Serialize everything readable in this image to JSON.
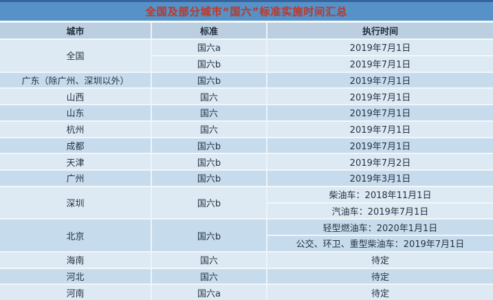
{
  "title": "全国及部分城市“国六”标准实施时间汇总",
  "colors": {
    "title_bar": "#5692c8",
    "title_text": "#c13a2c",
    "title_top_border": "#35649d",
    "header_row": "#bccfe0",
    "row_light": "#dde9f3",
    "row_dark": "#c6dbec",
    "grid_line": "#f2f7fa",
    "body_text": "#243243"
  },
  "table": {
    "headers": {
      "city": "城市",
      "standard": "标准",
      "time": "执行时间"
    },
    "rows": [
      {
        "city": "全国",
        "entries": [
          {
            "standard": "国六a",
            "time": "2019年7月1日"
          },
          {
            "standard": "国六b",
            "time": "2019年7月1日"
          }
        ]
      },
      {
        "city": "广东（除广州、深圳以外）",
        "entries": [
          {
            "standard": "国六b",
            "time": "2019年7月1日"
          }
        ]
      },
      {
        "city": "山西",
        "entries": [
          {
            "standard": "国六",
            "time": "2019年7月1日"
          }
        ]
      },
      {
        "city": "山东",
        "entries": [
          {
            "standard": "国六",
            "time": "2019年7月1日"
          }
        ]
      },
      {
        "city": "杭州",
        "entries": [
          {
            "standard": "国六",
            "time": "2019年7月1日"
          }
        ]
      },
      {
        "city": "成都",
        "entries": [
          {
            "standard": "国六b",
            "time": "2019年7月1日"
          }
        ]
      },
      {
        "city": "天津",
        "entries": [
          {
            "standard": "国六b",
            "time": "2019年7月2日"
          }
        ]
      },
      {
        "city": "广州",
        "entries": [
          {
            "standard": "国六b",
            "time": "2019年3月1日"
          }
        ]
      },
      {
        "city": "深圳",
        "entries": [
          {
            "standard": "国六b",
            "time": "柴油车：2018年11月1日"
          },
          {
            "time": "汽油车：2019年7月1日"
          }
        ]
      },
      {
        "city": "北京",
        "entries": [
          {
            "standard": "国六b",
            "time": "轻型燃油车：2020年1月1日"
          },
          {
            "time": "公交、环卫、重型柴油车：2019年7月1日"
          }
        ]
      },
      {
        "city": "海南",
        "entries": [
          {
            "standard": "国六",
            "time": "待定"
          }
        ]
      },
      {
        "city": "河北",
        "entries": [
          {
            "standard": "国六",
            "time": "待定"
          }
        ]
      },
      {
        "city": "河南",
        "entries": [
          {
            "standard": "国六a",
            "time": "待定"
          }
        ]
      }
    ]
  }
}
